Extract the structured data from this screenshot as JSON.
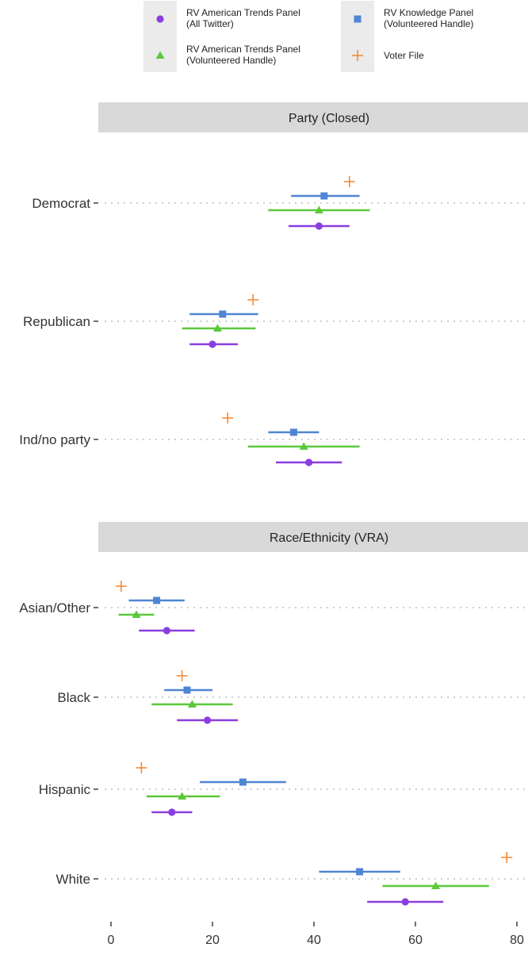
{
  "chart_data": {
    "type": "scatter",
    "subtype": "dot-and-whisker",
    "orientation": "horizontal",
    "xlim": [
      -2,
      80
    ],
    "x_ticks": [
      "0",
      "20",
      "40",
      "60",
      "80"
    ],
    "grid": "dotted horizontal guide per category",
    "legend_position": "top",
    "series": [
      {
        "name": "RV American Trends Panel\n(All Twitter)",
        "color": "#8a3ee0",
        "marker": "circle"
      },
      {
        "name": "RV American Trends Panel\n(Volunteered Handle)",
        "color": "#5cc83a",
        "marker": "triangle"
      },
      {
        "name": "RV Knowledge Panel\n(Volunteered Handle)",
        "color": "#4f86d4",
        "marker": "square"
      },
      {
        "name": "Voter File",
        "color": "#f08c3c",
        "marker": "plus"
      }
    ],
    "facets": [
      {
        "title": "Party (Closed)",
        "categories": [
          {
            "label": "Democrat",
            "values": {
              "atp_all": {
                "est": 41,
                "lo": 35,
                "hi": 47
              },
              "atp_vol": {
                "est": 41,
                "lo": 31,
                "hi": 51
              },
              "kp_vol": {
                "est": 42,
                "lo": 35.5,
                "hi": 49
              },
              "voter_file": {
                "est": 47
              }
            }
          },
          {
            "label": "Republican",
            "values": {
              "atp_all": {
                "est": 20,
                "lo": 15.5,
                "hi": 25
              },
              "atp_vol": {
                "est": 21,
                "lo": 14,
                "hi": 28.5
              },
              "kp_vol": {
                "est": 22,
                "lo": 15.5,
                "hi": 29
              },
              "voter_file": {
                "est": 28
              }
            }
          },
          {
            "label": "Ind/no party",
            "values": {
              "atp_all": {
                "est": 39,
                "lo": 32.5,
                "hi": 45.5
              },
              "atp_vol": {
                "est": 38,
                "lo": 27,
                "hi": 49
              },
              "kp_vol": {
                "est": 36,
                "lo": 31,
                "hi": 41
              },
              "voter_file": {
                "est": 23
              }
            }
          }
        ]
      },
      {
        "title": "Race/Ethnicity (VRA)",
        "categories": [
          {
            "label": "Asian/Other",
            "values": {
              "atp_all": {
                "est": 11,
                "lo": 5.5,
                "hi": 16.5
              },
              "atp_vol": {
                "est": 5,
                "lo": 1.5,
                "hi": 8.5
              },
              "kp_vol": {
                "est": 9,
                "lo": 3.5,
                "hi": 14.5
              },
              "voter_file": {
                "est": 2
              }
            }
          },
          {
            "label": "Black",
            "values": {
              "atp_all": {
                "est": 19,
                "lo": 13,
                "hi": 25
              },
              "atp_vol": {
                "est": 16,
                "lo": 8,
                "hi": 24
              },
              "kp_vol": {
                "est": 15,
                "lo": 10.5,
                "hi": 20
              },
              "voter_file": {
                "est": 14
              }
            }
          },
          {
            "label": "Hispanic",
            "values": {
              "atp_all": {
                "est": 12,
                "lo": 8,
                "hi": 16
              },
              "atp_vol": {
                "est": 14,
                "lo": 7,
                "hi": 21.5
              },
              "kp_vol": {
                "est": 26,
                "lo": 17.5,
                "hi": 34.5
              },
              "voter_file": {
                "est": 6
              }
            }
          },
          {
            "label": "White",
            "values": {
              "atp_all": {
                "est": 58,
                "lo": 50.5,
                "hi": 65.5
              },
              "atp_vol": {
                "est": 64,
                "lo": 53.5,
                "hi": 74.5
              },
              "kp_vol": {
                "est": 49,
                "lo": 41,
                "hi": 57
              },
              "voter_file": {
                "est": 78
              }
            }
          }
        ]
      }
    ]
  }
}
